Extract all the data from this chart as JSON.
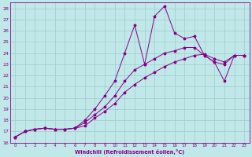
{
  "xlabel": "Windchill (Refroidissement éolien,°C)",
  "bg_color": "#c0e8e8",
  "grid_color": "#a0cccc",
  "line_color": "#880088",
  "xlim": [
    -0.5,
    23.5
  ],
  "ylim": [
    16,
    28.5
  ],
  "xtick_labels": [
    "0",
    "1",
    "2",
    "3",
    "4",
    "5",
    "6",
    "7",
    "8",
    "9",
    "10",
    "11",
    "12",
    "13",
    "14",
    "15",
    "16",
    "17",
    "18",
    "19",
    "20",
    "21",
    "22",
    "23"
  ],
  "ytick_labels": [
    "16",
    "17",
    "18",
    "19",
    "20",
    "21",
    "22",
    "23",
    "24",
    "25",
    "26",
    "27",
    "28"
  ],
  "series": [
    [
      16.5,
      17.0,
      17.2,
      17.3,
      17.2,
      17.2,
      17.3,
      17.5,
      18.2,
      18.8,
      19.5,
      20.5,
      21.2,
      21.8,
      22.3,
      22.8,
      23.2,
      23.5,
      23.8,
      23.9,
      23.5,
      23.2,
      23.8,
      23.8
    ],
    [
      16.5,
      17.0,
      17.2,
      17.3,
      17.2,
      17.2,
      17.3,
      17.8,
      18.5,
      19.2,
      20.2,
      21.5,
      22.5,
      23.0,
      23.5,
      24.0,
      24.2,
      24.5,
      24.5,
      23.8,
      23.2,
      23.0,
      23.8,
      23.8
    ],
    [
      16.5,
      17.0,
      17.2,
      17.3,
      17.2,
      17.2,
      17.3,
      18.0,
      19.0,
      20.2,
      21.5,
      24.0,
      26.5,
      23.0,
      27.3,
      28.2,
      25.8,
      25.3,
      25.5,
      23.8,
      23.2,
      21.5,
      23.8,
      23.8
    ]
  ]
}
